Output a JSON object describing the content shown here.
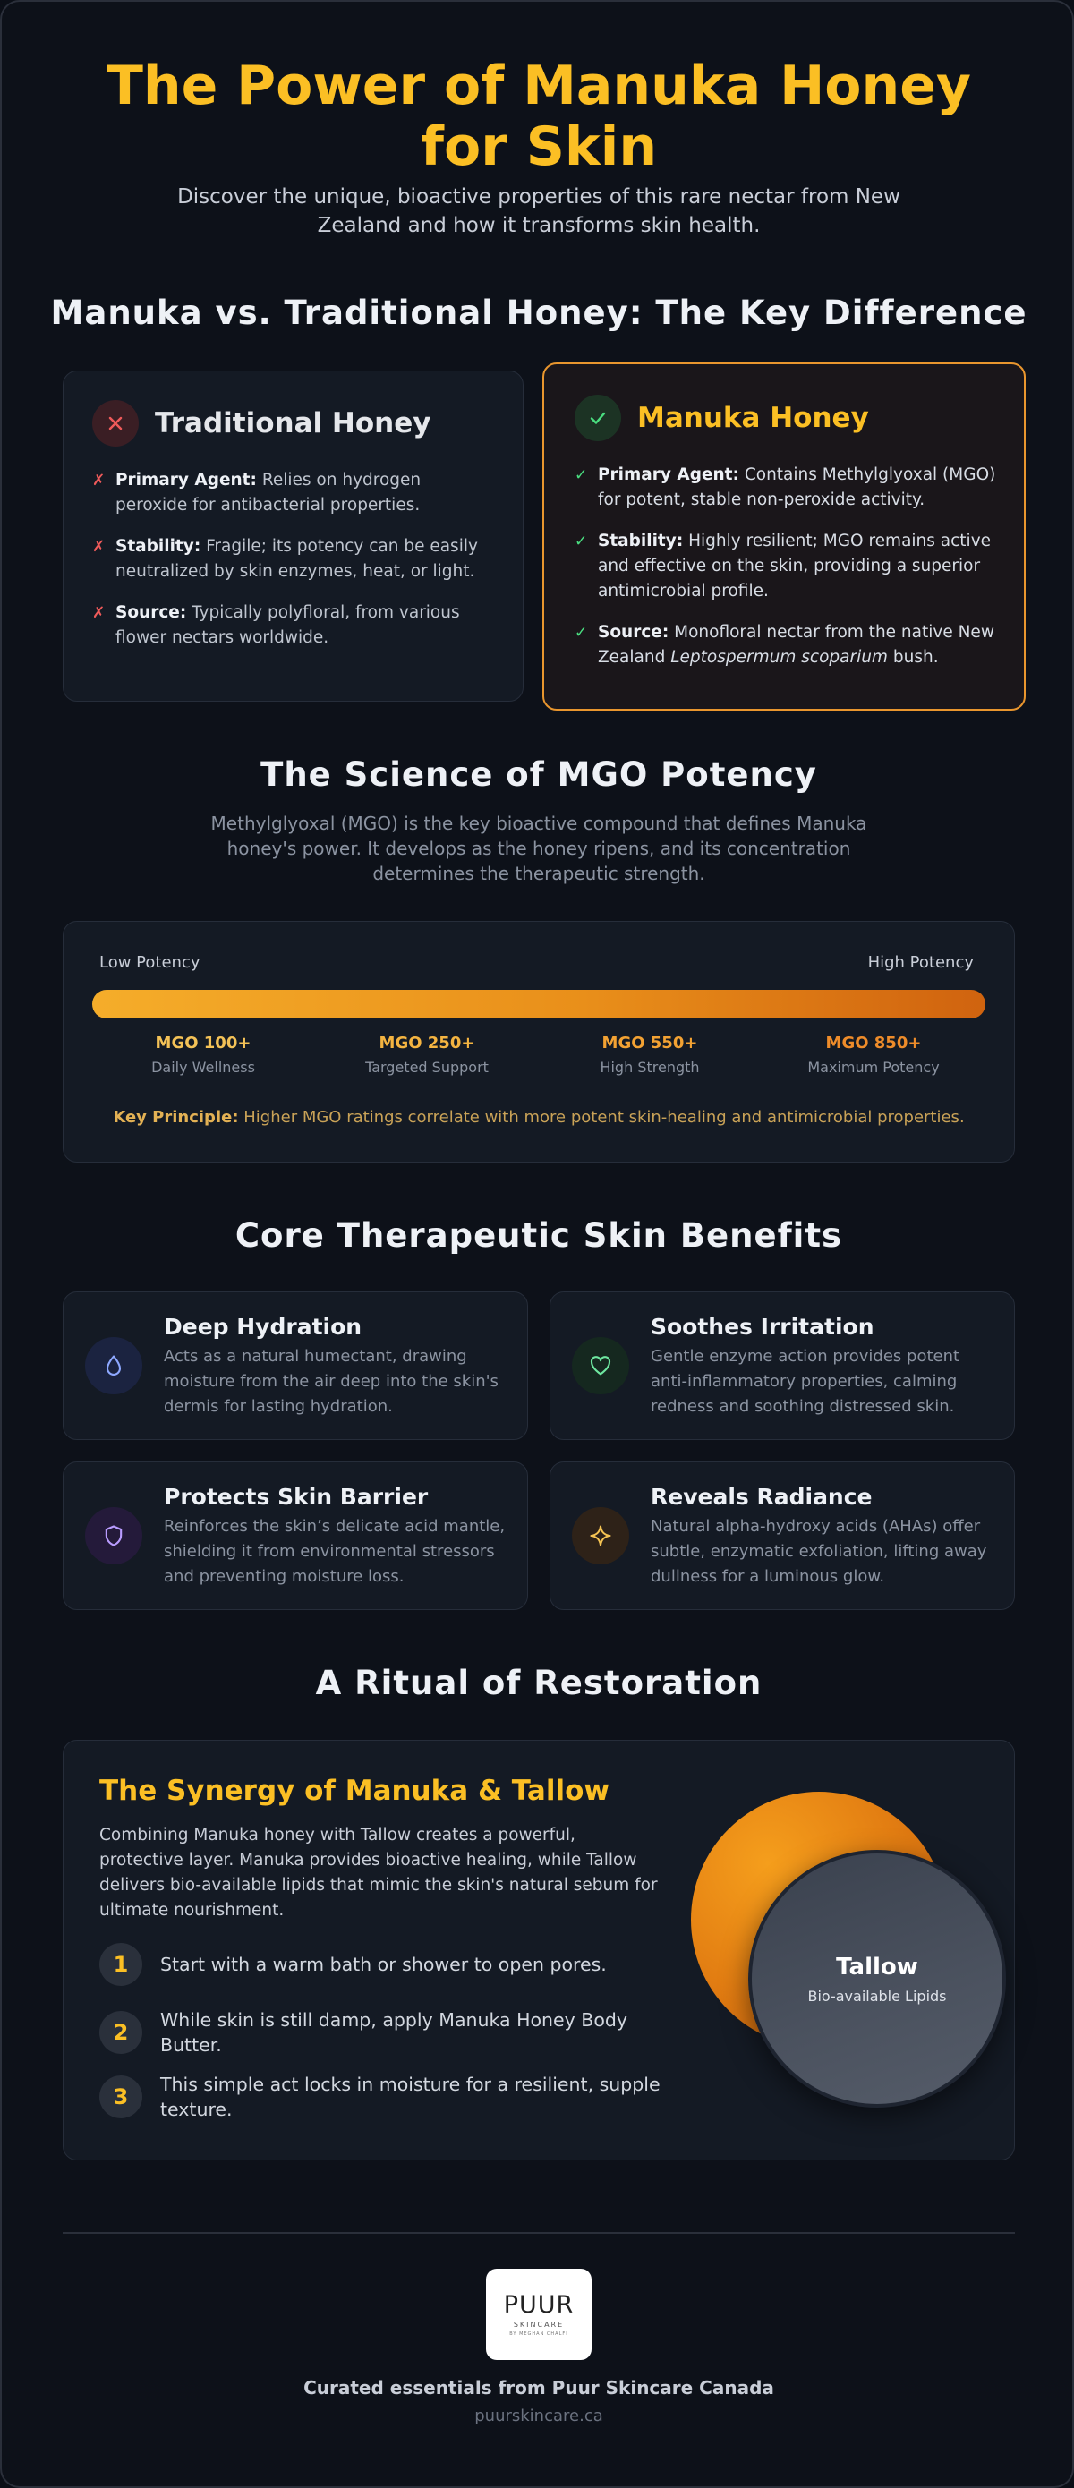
{
  "hero": {
    "title": "The Power of Manuka Honey for Skin",
    "subtitle": "Discover the unique, bioactive properties of this rare nectar from New Zealand and how it transforms skin health."
  },
  "comparison": {
    "title": "Manuka vs. Traditional Honey: The Key Difference",
    "traditional": {
      "icon": "x-icon",
      "title": "Traditional Honey",
      "items": [
        {
          "label": "Primary Agent:",
          "text": "Relies on hydrogen peroxide for antibacterial properties."
        },
        {
          "label": "Stability:",
          "text": "Fragile; its potency can be easily neutralized by skin enzymes, heat, or light."
        },
        {
          "label": "Source:",
          "text": "Typically polyfloral, from various flower nectars worldwide."
        }
      ]
    },
    "manuka": {
      "icon": "check-icon",
      "title": "Manuka Honey",
      "items": [
        {
          "label": "Primary Agent:",
          "text": "Contains Methylglyoxal (MGO) for potent, stable non-peroxide activity."
        },
        {
          "label": "Stability:",
          "text": "Highly resilient; MGO remains active and effective on the skin, providing a superior antimicrobial profile."
        },
        {
          "label": "Source:",
          "text_before": "Monofloral nectar from the native New Zealand",
          "text_italic": "Leptospermum scoparium",
          "text_after": "bush."
        }
      ]
    }
  },
  "science": {
    "title": "The Science of MGO Potency",
    "subtitle": "Methylglyoxal (MGO) is the key bioactive compound that defines Manuka honey's power. It develops as the honey ripens, and its concentration determines the therapeutic strength.",
    "low_label": "Low Potency",
    "high_label": "High Potency",
    "tiers": [
      {
        "value": "MGO 100+",
        "desc": "Daily Wellness",
        "color": "#f4c257"
      },
      {
        "value": "MGO 250+",
        "desc": "Targeted Support",
        "color": "#f4b441"
      },
      {
        "value": "MGO 550+",
        "desc": "High Strength",
        "color": "#f3a233"
      },
      {
        "value": "MGO 850+",
        "desc": "Maximum Potency",
        "color": "#ee8c2a"
      }
    ],
    "principle_label": "Key Principle:",
    "principle_text": "Higher MGO ratings correlate with more potent skin-healing and antimicrobial properties."
  },
  "benefits": {
    "title": "Core Therapeutic Skin Benefits",
    "items": [
      {
        "icon": "droplet-icon",
        "title": "Deep Hydration",
        "desc": "Acts as a natural humectant, drawing moisture from the air deep into the skin's dermis for lasting hydration.",
        "icon_bg": "#1b2340",
        "icon_color": "#8ea8ff"
      },
      {
        "icon": "heart-icon",
        "title": "Soothes Irritation",
        "desc": "Gentle enzyme action provides potent anti-inflammatory properties, calming redness and soothing distressed skin.",
        "icon_bg": "#15281f",
        "icon_color": "#6ee7a0"
      },
      {
        "icon": "shield-icon",
        "title": "Protects Skin Barrier",
        "desc": "Reinforces the skin’s delicate acid mantle, shielding it from environmental stressors and preventing moisture loss.",
        "icon_bg": "#241a3a",
        "icon_color": "#b99cff"
      },
      {
        "icon": "sparkle-icon",
        "title": "Reveals Radiance",
        "desc": "Natural alpha-hydroxy acids (AHAs) offer subtle, enzymatic exfoliation, lifting away dullness for a luminous glow.",
        "icon_bg": "#2e2218",
        "icon_color": "#f6c453"
      }
    ]
  },
  "ritual": {
    "title": "A Ritual of Restoration",
    "card_title": "The Synergy of Manuka & Tallow",
    "desc": "Combining Manuka honey with Tallow creates a powerful, protective layer. Manuka provides bioactive healing, while Tallow delivers bio-available lipids that mimic the skin's natural sebum for ultimate nourishment.",
    "steps": [
      {
        "num": "1",
        "text": "Start with a warm bath or shower to open pores."
      },
      {
        "num": "2",
        "text": "While skin is still damp, apply Manuka Honey Body Butter."
      },
      {
        "num": "3",
        "text": "This simple act locks in moisture for a resilient, supple texture."
      }
    ],
    "tallow_name": "Tallow",
    "tallow_sub": "Bio-available Lipids"
  },
  "footer": {
    "logo_main": "PUUR",
    "logo_sub": "SKINCARE",
    "logo_sub2": "BY MEGHAN CHALFI",
    "text": "Curated essentials from Puur Skincare Canada",
    "url": "puurskincare.ca"
  }
}
